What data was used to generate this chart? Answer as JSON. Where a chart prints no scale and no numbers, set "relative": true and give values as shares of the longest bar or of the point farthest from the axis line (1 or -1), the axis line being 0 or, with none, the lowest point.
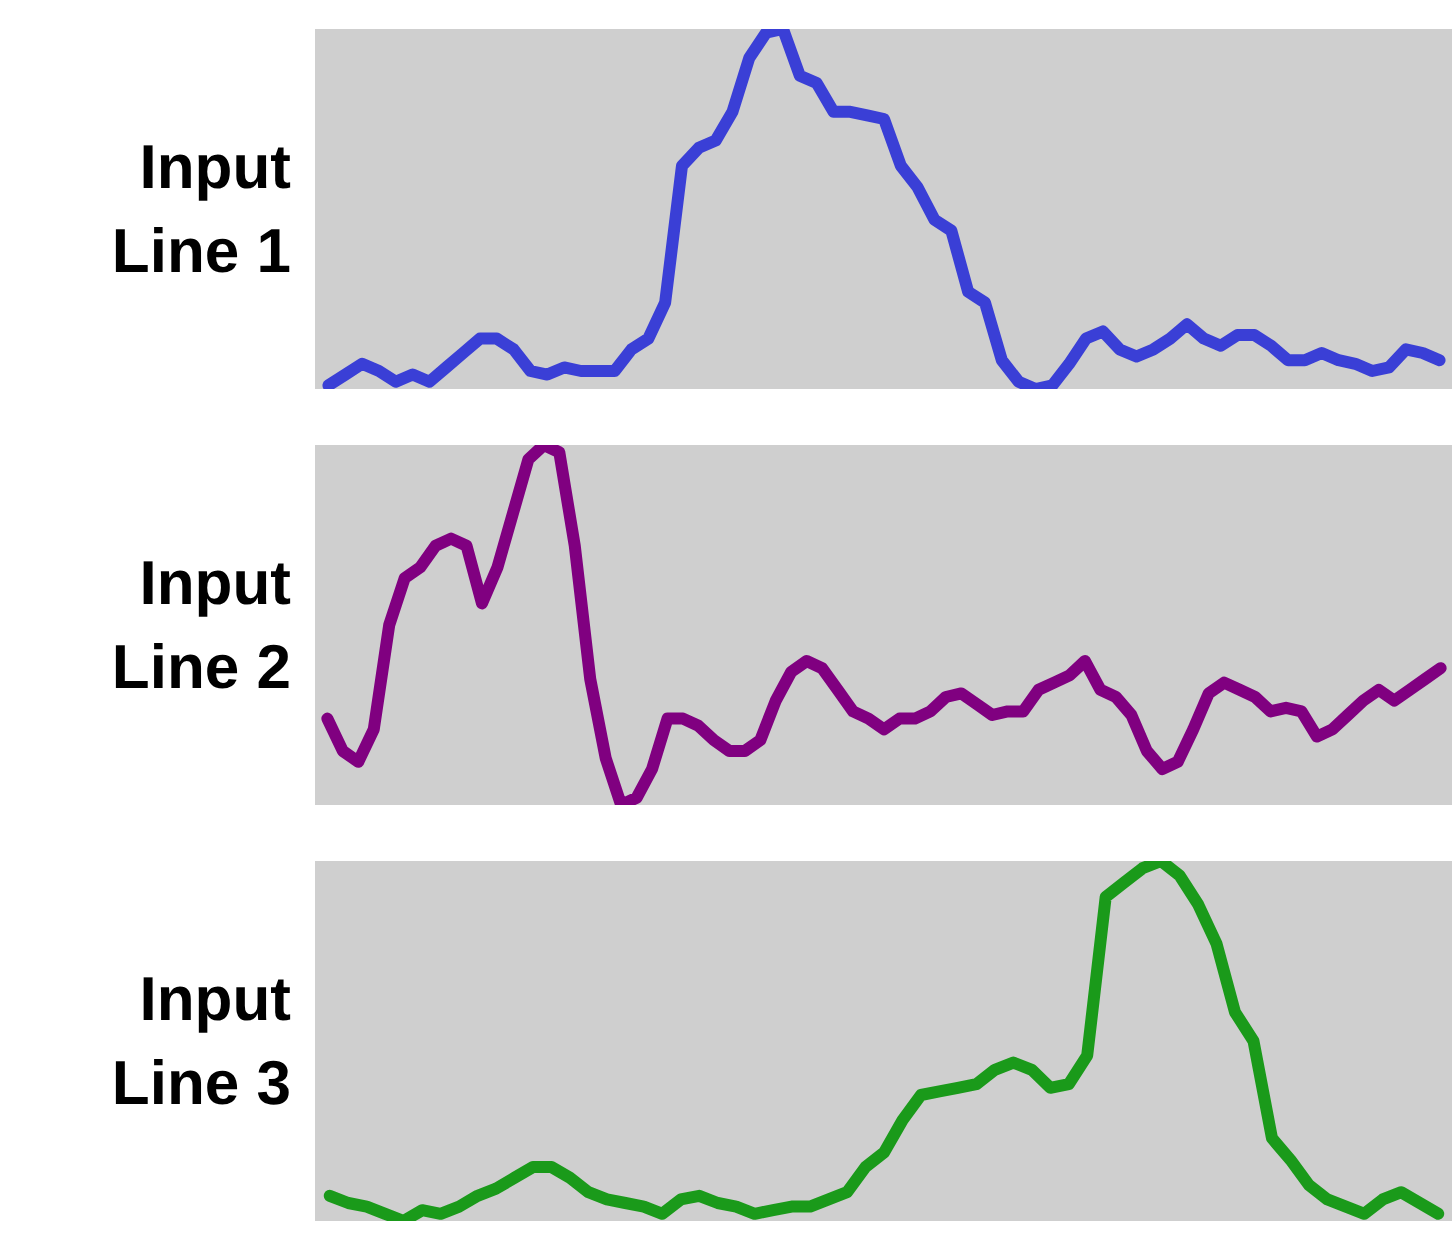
{
  "chart_data": [
    {
      "type": "line",
      "ylabel": "Input Line 1",
      "relative": true,
      "line_style": "solid",
      "categories": [
        null,
        null,
        null,
        null,
        null,
        null,
        null,
        null,
        null,
        null,
        null,
        null,
        null,
        null,
        null,
        null,
        null,
        null,
        null,
        null,
        null,
        null,
        null,
        null,
        null,
        null,
        null,
        null,
        null,
        null,
        null,
        null,
        null,
        null,
        null,
        null,
        null,
        null,
        null,
        null,
        null,
        null,
        null,
        null,
        null,
        null,
        null,
        null,
        null,
        null,
        null,
        null,
        null,
        null,
        null,
        null,
        null,
        null,
        null,
        null,
        null,
        null,
        null,
        null,
        null,
        null,
        null
      ],
      "series": [
        {
          "color": "#3a3fd6",
          "values": [
            0.01,
            0.04,
            0.07,
            0.05,
            0.02,
            0.04,
            0.02,
            0.06,
            0.1,
            0.14,
            0.14,
            0.11,
            0.05,
            0.04,
            0.06,
            0.05,
            0.05,
            0.05,
            0.11,
            0.14,
            0.24,
            0.62,
            0.67,
            0.69,
            0.77,
            0.92,
            0.99,
            1,
            0.87,
            0.85,
            0.77,
            0.77,
            0.76,
            0.75,
            0.62,
            0.56,
            0.47,
            0.44,
            0.27,
            0.24,
            0.08,
            0.02,
            0,
            0.01,
            0.07,
            0.14,
            0.16,
            0.11,
            0.09,
            0.11,
            0.14,
            0.18,
            0.14,
            0.12,
            0.15,
            0.15,
            0.12,
            0.08,
            0.08,
            0.1,
            0.08,
            0.07,
            0.05,
            0.06,
            0.11,
            0.1,
            0.08
          ]
        }
      ]
    },
    {
      "type": "line",
      "ylabel": "Input Line 2",
      "relative": true,
      "line_style": "solid",
      "categories": [
        null,
        null,
        null,
        null,
        null,
        null,
        null,
        null,
        null,
        null,
        null,
        null,
        null,
        null,
        null,
        null,
        null,
        null,
        null,
        null,
        null,
        null,
        null,
        null,
        null,
        null,
        null,
        null,
        null,
        null,
        null,
        null,
        null,
        null,
        null,
        null,
        null,
        null,
        null,
        null,
        null,
        null,
        null,
        null,
        null,
        null,
        null,
        null,
        null,
        null,
        null,
        null,
        null,
        null,
        null,
        null,
        null,
        null,
        null,
        null,
        null,
        null,
        null,
        null,
        null,
        null,
        null,
        null,
        null,
        null,
        null,
        null,
        null
      ],
      "series": [
        {
          "color": "#800080",
          "values": [
            0.24,
            0.15,
            0.12,
            0.21,
            0.5,
            0.63,
            0.66,
            0.72,
            0.74,
            0.72,
            0.56,
            0.66,
            0.81,
            0.96,
            1,
            0.98,
            0.72,
            0.35,
            0.13,
            0,
            0.02,
            0.1,
            0.24,
            0.24,
            0.22,
            0.18,
            0.15,
            0.15,
            0.18,
            0.29,
            0.37,
            0.4,
            0.38,
            0.32,
            0.26,
            0.24,
            0.21,
            0.24,
            0.24,
            0.26,
            0.3,
            0.31,
            0.28,
            0.25,
            0.26,
            0.26,
            0.32,
            0.34,
            0.36,
            0.4,
            0.32,
            0.3,
            0.25,
            0.15,
            0.1,
            0.12,
            0.21,
            0.31,
            0.34,
            0.32,
            0.3,
            0.26,
            0.27,
            0.26,
            0.19,
            0.21,
            0.25,
            0.29,
            0.32,
            0.29,
            0.32,
            0.35,
            0.38
          ]
        }
      ]
    },
    {
      "type": "line",
      "ylabel": "Input Line 3",
      "relative": true,
      "line_style": "solid",
      "categories": [
        null,
        null,
        null,
        null,
        null,
        null,
        null,
        null,
        null,
        null,
        null,
        null,
        null,
        null,
        null,
        null,
        null,
        null,
        null,
        null,
        null,
        null,
        null,
        null,
        null,
        null,
        null,
        null,
        null,
        null,
        null,
        null,
        null,
        null,
        null,
        null,
        null,
        null,
        null,
        null,
        null,
        null,
        null,
        null,
        null,
        null,
        null,
        null,
        null,
        null,
        null,
        null,
        null,
        null,
        null,
        null,
        null,
        null,
        null,
        null,
        null
      ],
      "series": [
        {
          "color": "#1a9a1a",
          "values": [
            0.07,
            0.05,
            0.04,
            0.02,
            0,
            0.03,
            0.02,
            0.04,
            0.07,
            0.09,
            0.12,
            0.15,
            0.15,
            0.12,
            0.08,
            0.06,
            0.05,
            0.04,
            0.02,
            0.06,
            0.07,
            0.05,
            0.04,
            0.02,
            0.03,
            0.04,
            0.04,
            0.06,
            0.08,
            0.15,
            0.19,
            0.28,
            0.35,
            0.36,
            0.37,
            0.38,
            0.42,
            0.44,
            0.42,
            0.37,
            0.38,
            0.46,
            0.9,
            0.94,
            0.98,
            1,
            0.96,
            0.88,
            0.77,
            0.58,
            0.5,
            0.23,
            0.17,
            0.1,
            0.06,
            0.04,
            0.02,
            0.06,
            0.08,
            0.05,
            0.02
          ]
        }
      ]
    }
  ]
}
